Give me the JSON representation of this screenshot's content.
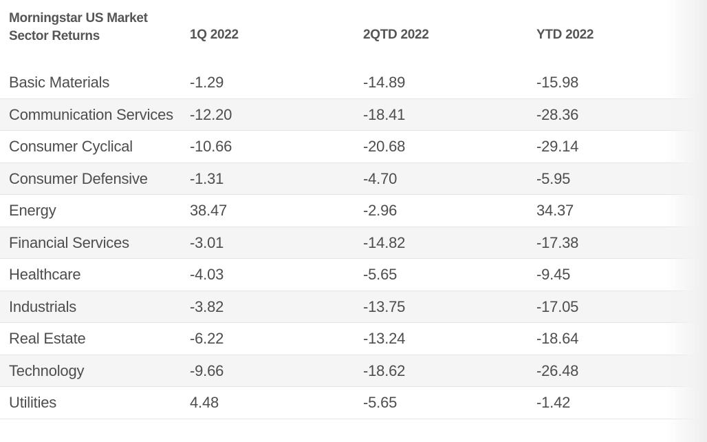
{
  "chart_data": {
    "type": "table",
    "title": "Morningstar US Market Sector Returns",
    "columns": [
      "1Q 2022",
      "2QTD 2022",
      "YTD 2022"
    ],
    "rows": [
      {
        "sector": "Basic Materials",
        "values": [
          "-1.29",
          "-14.89",
          "-15.98"
        ]
      },
      {
        "sector": "Communication Services",
        "values": [
          "-12.20",
          "-18.41",
          "-28.36"
        ]
      },
      {
        "sector": "Consumer Cyclical",
        "values": [
          "-10.66",
          "-20.68",
          "-29.14"
        ]
      },
      {
        "sector": "Consumer Defensive",
        "values": [
          "-1.31",
          "-4.70",
          "-5.95"
        ]
      },
      {
        "sector": "Energy",
        "values": [
          "38.47",
          "-2.96",
          "34.37"
        ]
      },
      {
        "sector": "Financial Services",
        "values": [
          "-3.01",
          "-14.82",
          "-17.38"
        ]
      },
      {
        "sector": "Healthcare",
        "values": [
          "-4.03",
          "-5.65",
          "-9.45"
        ]
      },
      {
        "sector": "Industrials",
        "values": [
          "-3.82",
          "-13.75",
          "-17.05"
        ]
      },
      {
        "sector": "Real Estate",
        "values": [
          "-6.22",
          "-13.24",
          "-18.64"
        ]
      },
      {
        "sector": "Technology",
        "values": [
          "-9.66",
          "-18.62",
          "-26.48"
        ]
      },
      {
        "sector": "Utilities",
        "values": [
          "4.48",
          "-5.65",
          "-1.42"
        ]
      }
    ]
  },
  "header": {
    "title_line1": "Morningstar US Market",
    "title_line2": "Sector Returns",
    "col1": "1Q 2022",
    "col2": "2QTD 2022",
    "col3": "YTD 2022"
  },
  "colors": {
    "text": "#4d4d4d",
    "row_alt_bg": "#f5f5f5",
    "divider": "#e4e4e4"
  }
}
